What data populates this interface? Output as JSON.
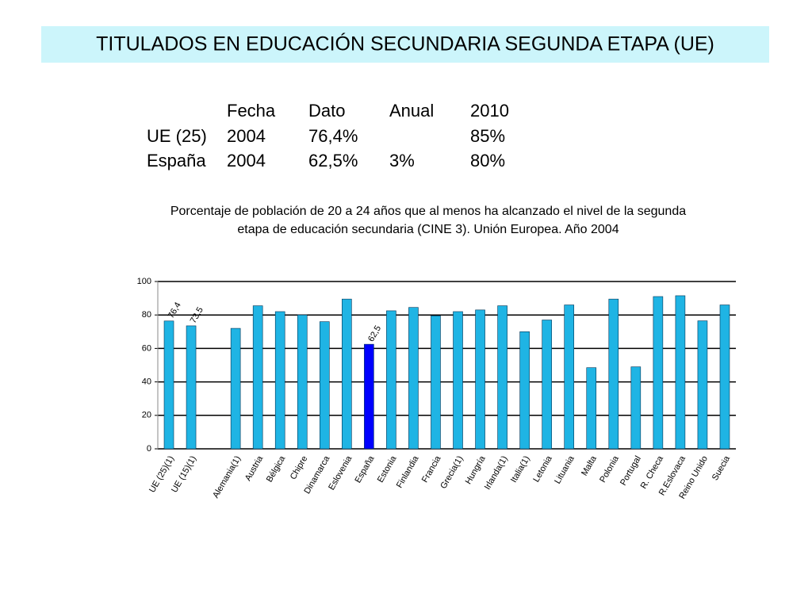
{
  "title": "TITULADOS EN EDUCACIÓN SECUNDARIA SEGUNDA ETAPA (UE)",
  "table": {
    "header": [
      null,
      "Fecha",
      "Dato",
      "Anual",
      "2010"
    ],
    "rows": [
      [
        "UE (25)",
        "2004",
        "76,4%",
        null,
        "85%"
      ],
      [
        "España",
        "2004",
        "62,5%",
        "3%",
        "80%"
      ]
    ]
  },
  "caption": [
    "Porcentaje de población de 20 a 24 años que al menos ha alcanzado el nivel de la segunda",
    "etapa de educación secundaria (CINE 3). Unión Europea. Año 2004"
  ],
  "chart_data": {
    "type": "bar",
    "categories": [
      "UE (25)(1)",
      "UE (15)(1)",
      null,
      "Alemania(1)",
      "Austria",
      "Bélgica",
      "Chipre",
      "Dinamarca",
      "Eslovenia",
      "España",
      "Estonia",
      "Finlandia",
      "Francia",
      "Grecia(1)",
      "Hungría",
      "Irlanda(1)",
      "Italia(1)",
      "Letonia",
      "Lituania",
      "Malta",
      "Polonia",
      "Portugal",
      "R. Checa",
      "R.Eslovaca",
      "Reino Unido",
      "Suecia"
    ],
    "values": [
      76.4,
      73.5,
      null,
      72,
      85.5,
      82,
      80,
      76,
      89.5,
      62.5,
      82.5,
      84.5,
      79.5,
      82,
      83,
      85.5,
      70,
      77,
      86,
      48.5,
      89.5,
      49,
      91,
      91.5,
      76.5,
      86
    ],
    "value_labels": [
      "76,4",
      "73,5",
      null,
      null,
      null,
      null,
      null,
      null,
      null,
      "62,5",
      null,
      null,
      null,
      null,
      null,
      null,
      null,
      null,
      null,
      null,
      null,
      null,
      null,
      null,
      null,
      null
    ],
    "colors": [
      "#1fb4e4",
      "#1fb4e4",
      "#1fb4e4",
      "#1fb4e4",
      "#1fb4e4",
      "#1fb4e4",
      "#1fb4e4",
      "#1fb4e4",
      "#1fb4e4",
      "#0000ff",
      "#1fb4e4",
      "#1fb4e4",
      "#1fb4e4",
      "#1fb4e4",
      "#1fb4e4",
      "#1fb4e4",
      "#1fb4e4",
      "#1fb4e4",
      "#1fb4e4",
      "#1fb4e4",
      "#1fb4e4",
      "#1fb4e4",
      "#1fb4e4",
      "#1fb4e4",
      "#1fb4e4",
      "#1fb4e4"
    ],
    "ylim": [
      0,
      100
    ],
    "yticks": [
      0,
      20,
      40,
      60,
      80,
      100
    ],
    "grid": true
  }
}
